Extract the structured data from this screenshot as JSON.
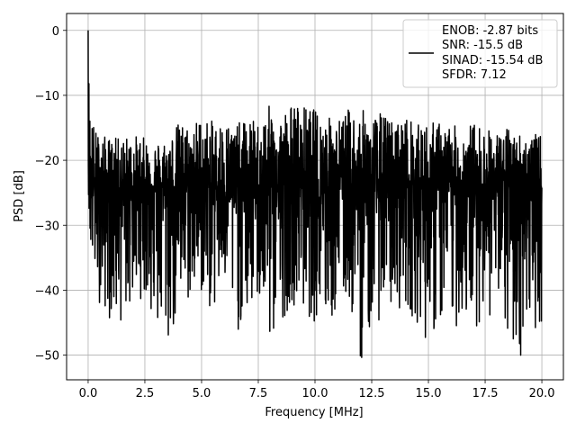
{
  "chart_data": {
    "type": "line",
    "title": "",
    "xlabel": "Frequency [MHz]",
    "ylabel": "PSD [dB]",
    "xlim": [
      -0.95,
      20.95
    ],
    "ylim": [
      -53.8,
      2.6
    ],
    "x_ticks": [
      0.0,
      2.5,
      5.0,
      7.5,
      10.0,
      12.5,
      15.0,
      17.5,
      20.0
    ],
    "x_tick_labels": [
      "0.0",
      "2.5",
      "5.0",
      "7.5",
      "10.0",
      "12.5",
      "15.0",
      "17.5",
      "20.0"
    ],
    "y_ticks": [
      0,
      -10,
      -20,
      -30,
      -40,
      -50
    ],
    "y_tick_labels": [
      "0",
      "−10",
      "−20",
      "−30",
      "−40",
      "−50"
    ],
    "grid": true,
    "legend_position": "top-right",
    "series": [
      {
        "color": "#000000",
        "x_start": 0.0,
        "x_end": 20.0,
        "envelope_x": [
          0.0,
          0.05,
          0.1,
          0.3,
          0.5,
          1.0,
          1.5,
          2.0,
          2.5,
          3.0,
          3.5,
          4.0,
          4.5,
          5.0,
          5.5,
          6.0,
          6.5,
          7.0,
          7.5,
          8.0,
          8.5,
          9.0,
          9.5,
          10.0,
          10.5,
          11.0,
          11.5,
          12.0,
          12.5,
          13.0,
          13.5,
          14.0,
          14.5,
          15.0,
          15.5,
          16.0,
          16.5,
          17.0,
          17.5,
          18.0,
          18.5,
          19.0,
          19.5,
          20.0
        ],
        "envelope_upper": [
          0.0,
          -8.0,
          -12.0,
          -15.0,
          -16.0,
          -16.5,
          -16.5,
          -16.0,
          -16.5,
          -17.0,
          -16.5,
          -14.0,
          -14.5,
          -13.0,
          -14.0,
          -13.5,
          -14.5,
          -13.5,
          -14.0,
          -11.5,
          -12.5,
          -11.0,
          -11.5,
          -12.0,
          -13.0,
          -13.5,
          -12.0,
          -12.0,
          -13.0,
          -12.5,
          -14.0,
          -13.0,
          -14.5,
          -14.0,
          -14.0,
          -14.5,
          -15.0,
          -14.0,
          -15.0,
          -15.5,
          -15.0,
          -15.5,
          -16.0,
          -16.0
        ],
        "envelope_lower": [
          -22.0,
          -32.0,
          -35.0,
          -40.0,
          -42.0,
          -45.0,
          -45.5,
          -42.0,
          -41.0,
          -47.0,
          -49.5,
          -45.0,
          -42.0,
          -41.0,
          -44.0,
          -40.0,
          -47.0,
          -45.0,
          -42.0,
          -49.5,
          -45.0,
          -42.0,
          -44.0,
          -45.0,
          -46.5,
          -44.0,
          -42.0,
          -51.5,
          -46.0,
          -44.0,
          -43.0,
          -43.0,
          -45.0,
          -48.5,
          -46.0,
          -47.0,
          -45.0,
          -46.0,
          -44.0,
          -45.0,
          -49.0,
          -51.5,
          -45.0,
          -47.0
        ],
        "envelope_typical": [
          -20.0,
          -22.0,
          -23.0,
          -24.0,
          -24.0,
          -24.0,
          -24.0,
          -24.0,
          -24.0,
          -24.0,
          -24.0,
          -24.0,
          -24.0,
          -24.0,
          -24.0,
          -24.0,
          -24.0,
          -24.0,
          -24.0,
          -24.0,
          -24.0,
          -24.0,
          -24.0,
          -24.0,
          -24.0,
          -24.0,
          -24.0,
          -24.0,
          -24.0,
          -24.0,
          -24.0,
          -24.0,
          -24.0,
          -24.0,
          -24.0,
          -24.0,
          -24.0,
          -24.0,
          -24.0,
          -24.0,
          -24.0,
          -24.0,
          -24.0,
          -24.0
        ]
      }
    ],
    "legend": {
      "lines": [
        "ENOB: -2.87 bits",
        "SNR: -15.5 dB",
        "SINAD: -15.54 dB",
        "SFDR: 7.12"
      ]
    }
  }
}
